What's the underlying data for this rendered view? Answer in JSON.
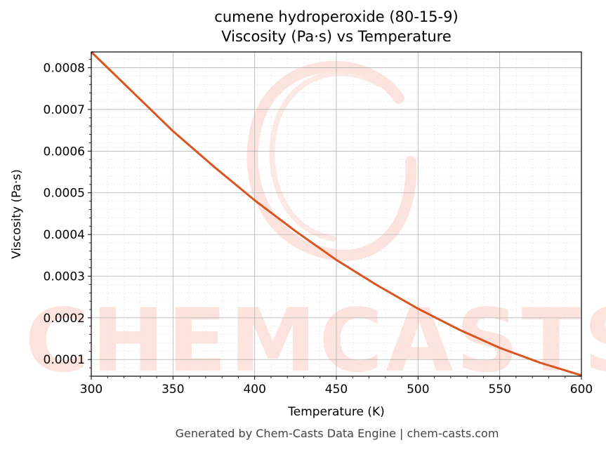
{
  "chart_data": {
    "type": "line",
    "title": "cumene hydroperoxide (80-15-9)",
    "subtitle": "Viscosity (Pa·s) vs Temperature",
    "xlabel": "Temperature (K)",
    "ylabel": "Viscosity (Pa·s)",
    "xlim": [
      300,
      600
    ],
    "ylim": [
      6e-05,
      0.000838
    ],
    "x_ticks": [
      300,
      350,
      400,
      450,
      500,
      550,
      600
    ],
    "x_tick_labels": [
      "300",
      "350",
      "400",
      "450",
      "500",
      "550",
      "600"
    ],
    "y_ticks": [
      0.0001,
      0.0002,
      0.0003,
      0.0004,
      0.0005,
      0.0006,
      0.0007,
      0.0008
    ],
    "y_tick_labels": [
      "0.0001",
      "0.0002",
      "0.0003",
      "0.0004",
      "0.0005",
      "0.0006",
      "0.0007",
      "0.0008"
    ],
    "grid": true,
    "series": [
      {
        "color": "#d9541e",
        "x": [
          300,
          325,
          350,
          375,
          400,
          425,
          450,
          475,
          500,
          525,
          550,
          575,
          600
        ],
        "y": [
          0.000838,
          0.000743,
          0.000648,
          0.000563,
          0.000482,
          0.000408,
          0.000339,
          0.000278,
          0.000222,
          0.000172,
          0.000128,
          9.2e-05,
          6.2e-05
        ]
      }
    ]
  },
  "watermark": {
    "text": "CHEMCASTS",
    "color": "#fde3dd"
  },
  "footer": "Generated by Chem-Casts Data Engine | chem-casts.com"
}
